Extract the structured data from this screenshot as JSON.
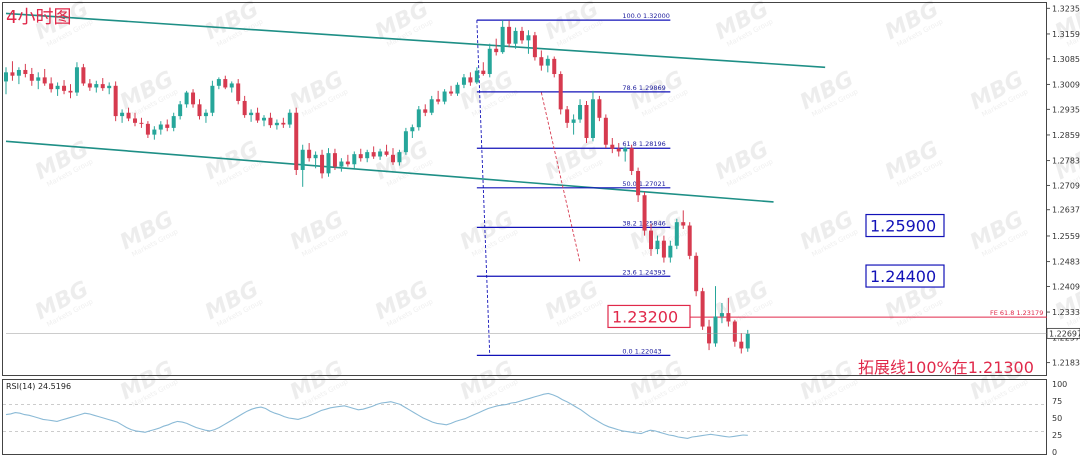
{
  "chart_data": {
    "type": "candlestick",
    "title": "4小时图",
    "colors": {
      "bull": "#26a69a",
      "bear": "#d63a4f",
      "channel": "#1e8f86",
      "fib": "#1212b8",
      "target_red": "#e0294a",
      "rsi_line": "#8bbad6"
    },
    "price_axis": {
      "range": [
        1.2155,
        1.3242
      ],
      "ticks": [
        "1.32350",
        "1.31590",
        "1.30850",
        "1.30090",
        "1.29350",
        "1.28590",
        "1.27830",
        "1.27090",
        "1.26370",
        "1.25590",
        "1.24830",
        "1.24090",
        "1.23330",
        "1.22570",
        "1.21830"
      ],
      "current_price": "1.22697"
    },
    "candles": [
      [
        1.3018,
        1.306,
        1.298,
        1.3045
      ],
      [
        1.3045,
        1.3078,
        1.302,
        1.3035
      ],
      [
        1.3035,
        1.306,
        1.301,
        1.3052
      ],
      [
        1.3052,
        1.307,
        1.303,
        1.304
      ],
      [
        1.304,
        1.3058,
        1.3005,
        1.302
      ],
      [
        1.302,
        1.3045,
        1.2995,
        1.303
      ],
      [
        1.303,
        1.3055,
        1.3005,
        1.3012
      ],
      [
        1.3012,
        1.303,
        1.2985,
        1.2995
      ],
      [
        1.2995,
        1.3015,
        1.2975,
        1.3005
      ],
      [
        1.3005,
        1.3022,
        1.298,
        1.299
      ],
      [
        1.299,
        1.301,
        1.2968,
        1.2985
      ],
      [
        1.2985,
        1.3075,
        1.2975,
        1.306
      ],
      [
        1.306,
        1.307,
        1.3005,
        1.3012
      ],
      [
        1.3012,
        1.3025,
        1.299,
        1.3
      ],
      [
        1.3,
        1.302,
        1.2985,
        1.301
      ],
      [
        1.301,
        1.3028,
        1.299,
        1.2998
      ],
      [
        1.2998,
        1.3015,
        1.298,
        1.3005
      ],
      [
        1.3005,
        1.3018,
        1.29,
        1.2915
      ],
      [
        1.2915,
        1.2935,
        1.2895,
        1.2925
      ],
      [
        1.2925,
        1.294,
        1.29,
        1.2908
      ],
      [
        1.2908,
        1.2925,
        1.2885,
        1.2895
      ],
      [
        1.2895,
        1.291,
        1.288,
        1.2892
      ],
      [
        1.2892,
        1.29,
        1.285,
        1.286
      ],
      [
        1.286,
        1.2885,
        1.2845,
        1.2875
      ],
      [
        1.2875,
        1.29,
        1.286,
        1.289
      ],
      [
        1.289,
        1.2905,
        1.287,
        1.288
      ],
      [
        1.288,
        1.2925,
        1.287,
        1.2915
      ],
      [
        1.2915,
        1.296,
        1.2905,
        1.295
      ],
      [
        1.295,
        1.299,
        1.294,
        1.2985
      ],
      [
        1.2985,
        1.2995,
        1.294,
        1.295
      ],
      [
        1.295,
        1.2965,
        1.2905,
        1.2915
      ],
      [
        1.2915,
        1.2935,
        1.2895,
        1.2925
      ],
      [
        1.2925,
        1.302,
        1.2915,
        1.3005
      ],
      [
        1.3005,
        1.303,
        1.2995,
        1.3025
      ],
      [
        1.3025,
        1.3035,
        1.2995,
        1.3
      ],
      [
        1.3,
        1.3018,
        1.2985,
        1.3012
      ],
      [
        1.3012,
        1.3025,
        1.295,
        1.296
      ],
      [
        1.296,
        1.2975,
        1.291,
        1.2918
      ],
      [
        1.2918,
        1.2935,
        1.2898,
        1.2925
      ],
      [
        1.2925,
        1.294,
        1.2895,
        1.2902
      ],
      [
        1.2902,
        1.2918,
        1.2885,
        1.291
      ],
      [
        1.291,
        1.2925,
        1.288,
        1.2888
      ],
      [
        1.2888,
        1.2905,
        1.2875,
        1.2895
      ],
      [
        1.2895,
        1.291,
        1.288,
        1.289
      ],
      [
        1.289,
        1.2935,
        1.288,
        1.2925
      ],
      [
        1.2925,
        1.294,
        1.274,
        1.2755
      ],
      [
        1.2755,
        1.283,
        1.2705,
        1.2815
      ],
      [
        1.2815,
        1.2835,
        1.278,
        1.279
      ],
      [
        1.279,
        1.281,
        1.276,
        1.28
      ],
      [
        1.28,
        1.2815,
        1.273,
        1.2745
      ],
      [
        1.2745,
        1.282,
        1.2735,
        1.2805
      ],
      [
        1.2805,
        1.2818,
        1.2755,
        1.2765
      ],
      [
        1.2765,
        1.279,
        1.275,
        1.278
      ],
      [
        1.278,
        1.28,
        1.2765,
        1.2772
      ],
      [
        1.2772,
        1.281,
        1.276,
        1.2802
      ],
      [
        1.2802,
        1.2818,
        1.278,
        1.279
      ],
      [
        1.279,
        1.2815,
        1.2778,
        1.2808
      ],
      [
        1.2808,
        1.2825,
        1.2788,
        1.2795
      ],
      [
        1.2795,
        1.2818,
        1.2785,
        1.281
      ],
      [
        1.281,
        1.283,
        1.2795,
        1.28
      ],
      [
        1.28,
        1.282,
        1.277,
        1.2778
      ],
      [
        1.2778,
        1.2815,
        1.2768,
        1.2808
      ],
      [
        1.2808,
        1.288,
        1.28,
        1.287
      ],
      [
        1.287,
        1.289,
        1.285,
        1.2882
      ],
      [
        1.2882,
        1.2945,
        1.2872,
        1.2935
      ],
      [
        1.2935,
        1.295,
        1.2915,
        1.2925
      ],
      [
        1.2925,
        1.2975,
        1.2918,
        1.2965
      ],
      [
        1.2965,
        1.299,
        1.295,
        1.2958
      ],
      [
        1.2958,
        1.2995,
        1.295,
        1.2988
      ],
      [
        1.2988,
        1.3005,
        1.2975,
        1.2982
      ],
      [
        1.2982,
        1.3015,
        1.2975,
        1.3008
      ],
      [
        1.3008,
        1.304,
        1.2998,
        1.303
      ],
      [
        1.303,
        1.3045,
        1.3005,
        1.3015
      ],
      [
        1.3015,
        1.306,
        1.301,
        1.305
      ],
      [
        1.305,
        1.3075,
        1.3035,
        1.304
      ],
      [
        1.304,
        1.313,
        1.303,
        1.3115
      ],
      [
        1.3115,
        1.3145,
        1.3095,
        1.3105
      ],
      [
        1.3105,
        1.32,
        1.31,
        1.318
      ],
      [
        1.318,
        1.3198,
        1.312,
        1.313
      ],
      [
        1.313,
        1.3178,
        1.3115,
        1.3168
      ],
      [
        1.3168,
        1.318,
        1.313,
        1.314
      ],
      [
        1.314,
        1.317,
        1.31,
        1.3155
      ],
      [
        1.3155,
        1.3165,
        1.308,
        1.309
      ],
      [
        1.309,
        1.311,
        1.305,
        1.3065
      ],
      [
        1.3065,
        1.3095,
        1.3045,
        1.3085
      ],
      [
        1.3085,
        1.3092,
        1.303,
        1.304
      ],
      [
        1.304,
        1.3048,
        1.292,
        1.2935
      ],
      [
        1.2935,
        1.2945,
        1.288,
        1.2895
      ],
      [
        1.2895,
        1.292,
        1.286,
        1.2905
      ],
      [
        1.2905,
        1.2965,
        1.2895,
        1.2948
      ],
      [
        1.2948,
        1.296,
        1.2835,
        1.285
      ],
      [
        1.285,
        1.299,
        1.284,
        1.2965
      ],
      [
        1.2965,
        1.2975,
        1.29,
        1.291
      ],
      [
        1.291,
        1.292,
        1.282,
        1.283
      ],
      [
        1.283,
        1.285,
        1.2805,
        1.2818
      ],
      [
        1.2818,
        1.2835,
        1.2795,
        1.281
      ],
      [
        1.281,
        1.2825,
        1.278,
        1.282
      ],
      [
        1.282,
        1.283,
        1.274,
        1.2752
      ],
      [
        1.2752,
        1.2762,
        1.266,
        1.268
      ],
      [
        1.268,
        1.269,
        1.256,
        1.2575
      ],
      [
        1.2575,
        1.2595,
        1.25,
        1.252
      ],
      [
        1.252,
        1.256,
        1.2505,
        1.2545
      ],
      [
        1.2545,
        1.256,
        1.248,
        1.2495
      ],
      [
        1.2495,
        1.2545,
        1.248,
        1.253
      ],
      [
        1.253,
        1.261,
        1.252,
        1.26
      ],
      [
        1.26,
        1.2635,
        1.258,
        1.259
      ],
      [
        1.259,
        1.26,
        1.249,
        1.25
      ],
      [
        1.25,
        1.251,
        1.238,
        1.2395
      ],
      [
        1.2395,
        1.2405,
        1.228,
        1.229
      ],
      [
        1.229,
        1.231,
        1.222,
        1.224
      ],
      [
        1.224,
        1.241,
        1.223,
        1.232
      ],
      [
        1.232,
        1.236,
        1.23,
        1.233
      ],
      [
        1.233,
        1.2375,
        1.229,
        1.2305
      ],
      [
        1.2305,
        1.231,
        1.223,
        1.2245
      ],
      [
        1.2245,
        1.227,
        1.221,
        1.2225
      ],
      [
        1.2225,
        1.228,
        1.2215,
        1.2268
      ]
    ],
    "channel_lines": [
      {
        "from": {
          "bar": 0,
          "price": 1.322
        },
        "to": {
          "bar": 127,
          "price": 1.306
        }
      },
      {
        "from": {
          "bar": 0,
          "price": 1.284
        },
        "to": {
          "bar": 119,
          "price": 1.266
        }
      }
    ],
    "fib_retracement": {
      "start_bar": 73,
      "end_bar": 103,
      "levels": [
        {
          "label": "100.0  1.32000",
          "price": 1.32
        },
        {
          "label": "78.6  1.29869",
          "price": 1.29869
        },
        {
          "label": "61.8  1.28196",
          "price": 1.28196
        },
        {
          "label": "50.0  1.27021",
          "price": 1.27021
        },
        {
          "label": "38.2  1.25846",
          "price": 1.25846
        },
        {
          "label": "23.6  1.24393",
          "price": 1.24393
        },
        {
          "label": "0.0  1.22043",
          "price": 1.22043
        }
      ]
    },
    "fe_line": {
      "label": "FE 61.8  1.23179",
      "price": 1.23179
    },
    "dashed_lines": [
      {
        "from": {
          "bar": 73,
          "price": 1.32
        },
        "to": {
          "bar": 75,
          "price": 1.2204
        }
      },
      {
        "from": {
          "bar": 83,
          "price": 1.2985
        },
        "to": {
          "bar": 89,
          "price": 1.248
        }
      }
    ],
    "callouts": [
      {
        "text": "1.25900",
        "price": 1.259,
        "style": "blue"
      },
      {
        "text": "1.24400",
        "price": 1.244,
        "style": "blue"
      },
      {
        "text": "1.23200",
        "price": 1.232,
        "style": "red"
      }
    ],
    "annotation": "拓展线100%在1.21300",
    "rsi": {
      "label": "RSI(14) 24.5196",
      "ticks": [
        100,
        75,
        50,
        25,
        0
      ],
      "levels": [
        70,
        30
      ],
      "values": [
        55,
        56,
        58,
        57,
        55,
        54,
        52,
        50,
        48,
        47,
        46,
        45,
        47,
        49,
        51,
        53,
        55,
        57,
        56,
        54,
        52,
        50,
        48,
        46,
        44,
        40,
        36,
        33,
        31,
        30,
        29,
        31,
        33,
        35,
        38,
        40,
        43,
        45,
        44,
        42,
        39,
        36,
        34,
        32,
        31,
        33,
        36,
        40,
        44,
        48,
        52,
        56,
        60,
        63,
        65,
        66,
        64,
        60,
        57,
        55,
        52,
        50,
        49,
        48,
        50,
        52,
        55,
        58,
        61,
        63,
        65,
        66,
        67,
        68,
        66,
        64,
        62,
        63,
        65,
        67,
        70,
        72,
        73,
        74,
        72,
        70,
        66,
        62,
        58,
        54,
        50,
        47,
        44,
        42,
        41,
        40,
        42,
        45,
        47,
        49,
        52,
        55,
        58,
        61,
        64,
        66,
        68,
        69,
        70,
        72,
        73,
        75,
        77,
        79,
        81,
        83,
        85,
        86,
        84,
        81,
        77,
        74,
        70,
        66,
        62,
        57,
        52,
        48,
        44,
        40,
        37,
        35,
        33,
        31,
        30,
        29,
        28,
        27,
        30,
        32,
        31,
        29,
        27,
        25,
        24,
        22,
        21,
        20,
        22,
        23,
        24,
        25,
        26,
        25,
        24,
        23,
        22,
        23,
        24,
        25,
        24.5
      ]
    },
    "watermark": {
      "text": "MBG",
      "sub": "Markets Group"
    }
  }
}
